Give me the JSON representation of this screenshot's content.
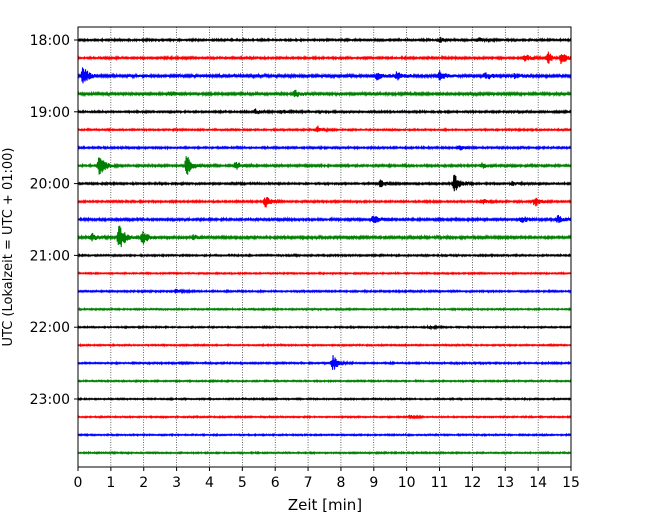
{
  "chart_data": {
    "type": "line",
    "title": "",
    "xlabel": "Zeit  [min]",
    "ylabel": "UTC (Lokalzeit = UTC + 01:00)",
    "xlim": [
      0,
      15
    ],
    "x_ticks": [
      "0",
      "1",
      "2",
      "3",
      "4",
      "5",
      "6",
      "7",
      "8",
      "9",
      "10",
      "11",
      "12",
      "13",
      "14",
      "15"
    ],
    "y_ticks": [
      {
        "label": "18:00",
        "trace_index": 0
      },
      {
        "label": "19:00",
        "trace_index": 4
      },
      {
        "label": "20:00",
        "trace_index": 8
      },
      {
        "label": "21:00",
        "trace_index": 12
      },
      {
        "label": "22:00",
        "trace_index": 16
      },
      {
        "label": "23:00",
        "trace_index": 20
      }
    ],
    "grid": "vertical dotted at each minute",
    "trace_colors": [
      "#000000",
      "#ff0000",
      "#0000ff",
      "#008000"
    ],
    "trace_minutes": 15,
    "traces": [
      {
        "start": "18:00",
        "noise": 0.9,
        "events": [
          {
            "t": 11.0,
            "amp": 3
          },
          {
            "t": 12.2,
            "amp": 2
          }
        ]
      },
      {
        "start": "18:15",
        "noise": 1.0,
        "events": [
          {
            "t": 13.6,
            "amp": 4
          },
          {
            "t": 14.3,
            "amp": 6
          },
          {
            "t": 14.7,
            "amp": 6
          }
        ]
      },
      {
        "start": "18:30",
        "noise": 1.4,
        "events": [
          {
            "t": 0.15,
            "amp": 9
          },
          {
            "t": 9.1,
            "amp": 4
          },
          {
            "t": 9.7,
            "amp": 4
          },
          {
            "t": 11.0,
            "amp": 5
          },
          {
            "t": 12.4,
            "amp": 4
          },
          {
            "t": 13.3,
            "amp": 3
          }
        ]
      },
      {
        "start": "18:45",
        "noise": 1.2,
        "events": [
          {
            "t": 6.6,
            "amp": 4
          },
          {
            "t": 2.8,
            "amp": 2
          }
        ]
      },
      {
        "start": "19:00",
        "noise": 0.9,
        "events": [
          {
            "t": 5.4,
            "amp": 3
          },
          {
            "t": 6.2,
            "amp": 2
          }
        ]
      },
      {
        "start": "19:15",
        "noise": 0.8,
        "events": [
          {
            "t": 7.3,
            "amp": 4
          }
        ]
      },
      {
        "start": "19:30",
        "noise": 0.9,
        "events": [
          {
            "t": 11.6,
            "amp": 3
          }
        ]
      },
      {
        "start": "19:45",
        "noise": 1.0,
        "events": [
          {
            "t": 0.65,
            "amp": 12
          },
          {
            "t": 3.3,
            "amp": 11
          },
          {
            "t": 4.8,
            "amp": 4
          },
          {
            "t": 12.3,
            "amp": 3
          }
        ]
      },
      {
        "start": "20:00",
        "noise": 0.9,
        "events": [
          {
            "t": 9.2,
            "amp": 4
          },
          {
            "t": 11.45,
            "amp": 10
          },
          {
            "t": 13.2,
            "amp": 3
          }
        ]
      },
      {
        "start": "20:15",
        "noise": 0.9,
        "events": [
          {
            "t": 5.7,
            "amp": 6
          },
          {
            "t": 12.3,
            "amp": 3
          },
          {
            "t": 13.9,
            "amp": 5
          }
        ]
      },
      {
        "start": "20:30",
        "noise": 1.1,
        "events": [
          {
            "t": 9.0,
            "amp": 5
          },
          {
            "t": 13.5,
            "amp": 4
          },
          {
            "t": 14.6,
            "amp": 4
          }
        ]
      },
      {
        "start": "20:45",
        "noise": 1.2,
        "events": [
          {
            "t": 0.4,
            "amp": 5
          },
          {
            "t": 1.25,
            "amp": 16
          },
          {
            "t": 1.95,
            "amp": 8
          },
          {
            "t": 3.5,
            "amp": 3
          }
        ]
      },
      {
        "start": "21:00",
        "noise": 0.8,
        "events": []
      },
      {
        "start": "21:15",
        "noise": 0.7,
        "events": []
      },
      {
        "start": "21:30",
        "noise": 0.8,
        "events": [
          {
            "t": 3.0,
            "amp": 2
          }
        ]
      },
      {
        "start": "21:45",
        "noise": 0.7,
        "events": []
      },
      {
        "start": "22:00",
        "noise": 0.7,
        "events": [
          {
            "t": 10.7,
            "amp": 2
          }
        ]
      },
      {
        "start": "22:15",
        "noise": 0.7,
        "events": []
      },
      {
        "start": "22:30",
        "noise": 0.8,
        "events": [
          {
            "t": 7.75,
            "amp": 9
          }
        ]
      },
      {
        "start": "22:45",
        "noise": 0.7,
        "events": []
      },
      {
        "start": "23:00",
        "noise": 0.7,
        "events": []
      },
      {
        "start": "23:15",
        "noise": 0.7,
        "events": [
          {
            "t": 10.1,
            "amp": 2
          }
        ]
      },
      {
        "start": "23:30",
        "noise": 0.7,
        "events": []
      },
      {
        "start": "23:45",
        "noise": 0.7,
        "events": []
      }
    ]
  }
}
